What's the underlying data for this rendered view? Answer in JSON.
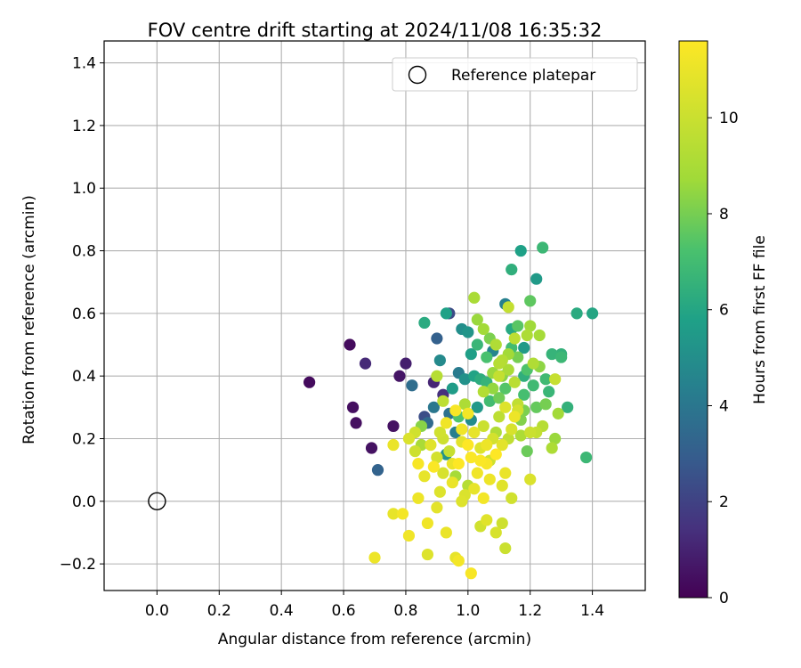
{
  "chart_data": {
    "type": "scatter",
    "title": "FOV centre drift starting at 2024/11/08 16:35:32",
    "xlabel": "Angular distance from reference (arcmin)",
    "ylabel": "Rotation from reference (arcmin)",
    "xlim": [
      -0.17,
      1.57
    ],
    "ylim": [
      -0.285,
      1.47
    ],
    "x_ticks": [
      "0.0",
      "0.2",
      "0.4",
      "0.6",
      "0.8",
      "1.0",
      "1.2",
      "1.4"
    ],
    "y_ticks": [
      "−0.2",
      "0.0",
      "0.2",
      "0.4",
      "0.6",
      "0.8",
      "1.0",
      "1.2",
      "1.4"
    ],
    "grid": true,
    "legend": {
      "placement": "top-right",
      "label": "Reference platepar"
    },
    "reference_point": {
      "x": 0.0,
      "y": 0.0
    },
    "colorbar": {
      "label": "Hours from first FF file",
      "range": [
        0,
        11.6
      ],
      "ticks": [
        "0",
        "2",
        "4",
        "6",
        "8",
        "10"
      ],
      "colormap": "viridis"
    },
    "points": [
      {
        "x": 0.49,
        "y": 0.38,
        "h": 0.3
      },
      {
        "x": 0.62,
        "y": 0.5,
        "h": 0.3
      },
      {
        "x": 0.63,
        "y": 0.3,
        "h": 0.4
      },
      {
        "x": 0.64,
        "y": 0.25,
        "h": 0.4
      },
      {
        "x": 0.67,
        "y": 0.44,
        "h": 1.2
      },
      {
        "x": 0.69,
        "y": 0.17,
        "h": 0.5
      },
      {
        "x": 0.71,
        "y": 0.1,
        "h": 3.2
      },
      {
        "x": 0.76,
        "y": 0.24,
        "h": 0.5
      },
      {
        "x": 0.78,
        "y": 0.4,
        "h": 0.6
      },
      {
        "x": 0.8,
        "y": 0.44,
        "h": 0.9
      },
      {
        "x": 0.82,
        "y": 0.37,
        "h": 3.6
      },
      {
        "x": 0.86,
        "y": 0.27,
        "h": 2.4
      },
      {
        "x": 0.89,
        "y": 0.38,
        "h": 1.1
      },
      {
        "x": 0.9,
        "y": 0.52,
        "h": 3.1
      },
      {
        "x": 0.92,
        "y": 0.34,
        "h": 1.4
      },
      {
        "x": 0.94,
        "y": 0.6,
        "h": 2.3
      },
      {
        "x": 0.93,
        "y": 0.6,
        "h": 5.8
      },
      {
        "x": 0.86,
        "y": 0.57,
        "h": 6.2
      },
      {
        "x": 0.91,
        "y": 0.45,
        "h": 4.8
      },
      {
        "x": 0.97,
        "y": 0.41,
        "h": 4.2
      },
      {
        "x": 0.99,
        "y": 0.39,
        "h": 5.1
      },
      {
        "x": 0.95,
        "y": 0.36,
        "h": 5.6
      },
      {
        "x": 0.98,
        "y": 0.55,
        "h": 5.0
      },
      {
        "x": 1.0,
        "y": 0.54,
        "h": 5.3
      },
      {
        "x": 1.01,
        "y": 0.47,
        "h": 5.7
      },
      {
        "x": 1.02,
        "y": 0.4,
        "h": 5.9
      },
      {
        "x": 1.03,
        "y": 0.58,
        "h": 8.6
      },
      {
        "x": 1.02,
        "y": 0.65,
        "h": 9.0
      },
      {
        "x": 1.05,
        "y": 0.55,
        "h": 8.8
      },
      {
        "x": 1.06,
        "y": 0.38,
        "h": 6.6
      },
      {
        "x": 1.07,
        "y": 0.32,
        "h": 7.0
      },
      {
        "x": 1.08,
        "y": 0.48,
        "h": 4.6
      },
      {
        "x": 1.09,
        "y": 0.5,
        "h": 9.2
      },
      {
        "x": 1.1,
        "y": 0.44,
        "h": 9.4
      },
      {
        "x": 1.11,
        "y": 0.4,
        "h": 8.3
      },
      {
        "x": 1.12,
        "y": 0.63,
        "h": 4.4
      },
      {
        "x": 1.13,
        "y": 0.62,
        "h": 9.8
      },
      {
        "x": 1.14,
        "y": 0.74,
        "h": 6.4
      },
      {
        "x": 1.14,
        "y": 0.55,
        "h": 6.1
      },
      {
        "x": 1.15,
        "y": 0.52,
        "h": 9.6
      },
      {
        "x": 1.16,
        "y": 0.46,
        "h": 8.0
      },
      {
        "x": 1.17,
        "y": 0.8,
        "h": 5.8
      },
      {
        "x": 1.18,
        "y": 0.49,
        "h": 5.5
      },
      {
        "x": 1.19,
        "y": 0.42,
        "h": 7.3
      },
      {
        "x": 1.2,
        "y": 0.64,
        "h": 7.6
      },
      {
        "x": 1.2,
        "y": 0.56,
        "h": 8.7
      },
      {
        "x": 1.22,
        "y": 0.71,
        "h": 5.5
      },
      {
        "x": 1.23,
        "y": 0.53,
        "h": 8.9
      },
      {
        "x": 1.24,
        "y": 0.81,
        "h": 6.8
      },
      {
        "x": 1.25,
        "y": 0.39,
        "h": 6.9
      },
      {
        "x": 1.26,
        "y": 0.35,
        "h": 6.7
      },
      {
        "x": 1.27,
        "y": 0.47,
        "h": 6.6
      },
      {
        "x": 1.28,
        "y": 0.39,
        "h": 9.9
      },
      {
        "x": 1.3,
        "y": 0.47,
        "h": 6.5
      },
      {
        "x": 1.3,
        "y": 0.46,
        "h": 6.8
      },
      {
        "x": 1.29,
        "y": 0.28,
        "h": 8.8
      },
      {
        "x": 1.32,
        "y": 0.3,
        "h": 6.5
      },
      {
        "x": 1.35,
        "y": 0.6,
        "h": 6.2
      },
      {
        "x": 1.4,
        "y": 0.6,
        "h": 6.0
      },
      {
        "x": 1.38,
        "y": 0.14,
        "h": 6.8
      },
      {
        "x": 1.28,
        "y": 0.2,
        "h": 8.6
      },
      {
        "x": 1.27,
        "y": 0.17,
        "h": 9.1
      },
      {
        "x": 1.24,
        "y": 0.24,
        "h": 9.4
      },
      {
        "x": 1.22,
        "y": 0.22,
        "h": 9.8
      },
      {
        "x": 1.2,
        "y": 0.07,
        "h": 10.5
      },
      {
        "x": 1.19,
        "y": 0.16,
        "h": 7.8
      },
      {
        "x": 1.16,
        "y": 0.29,
        "h": 10.3
      },
      {
        "x": 1.15,
        "y": 0.27,
        "h": 11.1
      },
      {
        "x": 1.13,
        "y": 0.2,
        "h": 9.7
      },
      {
        "x": 1.14,
        "y": 0.01,
        "h": 10.2
      },
      {
        "x": 1.12,
        "y": 0.09,
        "h": 11.0
      },
      {
        "x": 1.11,
        "y": -0.07,
        "h": 10.1
      },
      {
        "x": 1.12,
        "y": -0.15,
        "h": 10.0
      },
      {
        "x": 1.09,
        "y": -0.1,
        "h": 10.4
      },
      {
        "x": 1.06,
        "y": -0.06,
        "h": 10.7
      },
      {
        "x": 1.04,
        "y": -0.08,
        "h": 10.2
      },
      {
        "x": 1.01,
        "y": -0.23,
        "h": 11.4
      },
      {
        "x": 0.97,
        "y": -0.19,
        "h": 11.3
      },
      {
        "x": 0.96,
        "y": -0.18,
        "h": 10.9
      },
      {
        "x": 0.93,
        "y": -0.1,
        "h": 11.0
      },
      {
        "x": 0.9,
        "y": -0.02,
        "h": 10.8
      },
      {
        "x": 0.87,
        "y": -0.07,
        "h": 11.2
      },
      {
        "x": 0.87,
        "y": -0.17,
        "h": 10.6
      },
      {
        "x": 0.81,
        "y": -0.11,
        "h": 11.2
      },
      {
        "x": 0.76,
        "y": -0.04,
        "h": 10.9
      },
      {
        "x": 0.79,
        "y": -0.04,
        "h": 11.3
      },
      {
        "x": 0.7,
        "y": -0.18,
        "h": 11.1
      },
      {
        "x": 0.76,
        "y": 0.18,
        "h": 11.0
      },
      {
        "x": 0.81,
        "y": 0.2,
        "h": 10.5
      },
      {
        "x": 0.83,
        "y": 0.22,
        "h": 10.2
      },
      {
        "x": 0.84,
        "y": 0.12,
        "h": 11.4
      },
      {
        "x": 0.84,
        "y": 0.01,
        "h": 11.1
      },
      {
        "x": 0.86,
        "y": 0.08,
        "h": 10.9
      },
      {
        "x": 0.88,
        "y": 0.18,
        "h": 10.7
      },
      {
        "x": 0.89,
        "y": 0.11,
        "h": 11.5
      },
      {
        "x": 0.9,
        "y": 0.14,
        "h": 10.3
      },
      {
        "x": 0.91,
        "y": 0.03,
        "h": 10.6
      },
      {
        "x": 0.92,
        "y": 0.2,
        "h": 10.1
      },
      {
        "x": 0.93,
        "y": 0.25,
        "h": 11.2
      },
      {
        "x": 0.94,
        "y": 0.16,
        "h": 9.9
      },
      {
        "x": 0.95,
        "y": 0.06,
        "h": 11.0
      },
      {
        "x": 0.96,
        "y": 0.29,
        "h": 11.4
      },
      {
        "x": 0.97,
        "y": 0.12,
        "h": 11.6
      },
      {
        "x": 0.98,
        "y": 0.19,
        "h": 10.8
      },
      {
        "x": 0.99,
        "y": 0.02,
        "h": 10.5
      },
      {
        "x": 1.0,
        "y": 0.28,
        "h": 11.3
      },
      {
        "x": 1.01,
        "y": 0.14,
        "h": 11.5
      },
      {
        "x": 1.02,
        "y": 0.22,
        "h": 10.9
      },
      {
        "x": 1.03,
        "y": 0.09,
        "h": 11.2
      },
      {
        "x": 1.04,
        "y": 0.17,
        "h": 10.6
      },
      {
        "x": 1.05,
        "y": 0.24,
        "h": 10.0
      },
      {
        "x": 1.06,
        "y": 0.12,
        "h": 11.4
      },
      {
        "x": 1.07,
        "y": 0.07,
        "h": 11.1
      },
      {
        "x": 1.08,
        "y": 0.2,
        "h": 10.3
      },
      {
        "x": 1.09,
        "y": 0.15,
        "h": 11.6
      },
      {
        "x": 1.1,
        "y": 0.27,
        "h": 9.6
      },
      {
        "x": 1.11,
        "y": 0.05,
        "h": 10.7
      },
      {
        "x": 1.05,
        "y": 0.35,
        "h": 9.3
      },
      {
        "x": 1.08,
        "y": 0.36,
        "h": 8.5
      },
      {
        "x": 1.1,
        "y": 0.33,
        "h": 7.9
      },
      {
        "x": 1.12,
        "y": 0.36,
        "h": 7.4
      },
      {
        "x": 1.13,
        "y": 0.42,
        "h": 9.0
      },
      {
        "x": 1.15,
        "y": 0.38,
        "h": 9.5
      },
      {
        "x": 1.16,
        "y": 0.31,
        "h": 9.7
      },
      {
        "x": 1.17,
        "y": 0.26,
        "h": 8.2
      },
      {
        "x": 1.18,
        "y": 0.34,
        "h": 7.1
      },
      {
        "x": 1.21,
        "y": 0.37,
        "h": 6.9
      },
      {
        "x": 1.22,
        "y": 0.3,
        "h": 7.7
      },
      {
        "x": 1.23,
        "y": 0.43,
        "h": 8.4
      },
      {
        "x": 1.21,
        "y": 0.44,
        "h": 9.2
      },
      {
        "x": 1.19,
        "y": 0.53,
        "h": 9.1
      },
      {
        "x": 1.16,
        "y": 0.56,
        "h": 7.5
      },
      {
        "x": 1.13,
        "y": 0.47,
        "h": 8.8
      },
      {
        "x": 1.11,
        "y": 0.45,
        "h": 9.3
      },
      {
        "x": 1.08,
        "y": 0.41,
        "h": 8.6
      },
      {
        "x": 1.06,
        "y": 0.46,
        "h": 7.2
      },
      {
        "x": 1.04,
        "y": 0.39,
        "h": 6.3
      },
      {
        "x": 1.03,
        "y": 0.3,
        "h": 5.4
      },
      {
        "x": 1.01,
        "y": 0.26,
        "h": 4.9
      },
      {
        "x": 0.99,
        "y": 0.31,
        "h": 9.1
      },
      {
        "x": 0.97,
        "y": 0.27,
        "h": 7.3
      },
      {
        "x": 0.96,
        "y": 0.22,
        "h": 4.3
      },
      {
        "x": 0.94,
        "y": 0.28,
        "h": 3.8
      },
      {
        "x": 0.92,
        "y": 0.32,
        "h": 9.6
      },
      {
        "x": 0.9,
        "y": 0.4,
        "h": 9.4
      },
      {
        "x": 0.89,
        "y": 0.3,
        "h": 4.0
      },
      {
        "x": 0.87,
        "y": 0.25,
        "h": 3.5
      },
      {
        "x": 0.85,
        "y": 0.18,
        "h": 9.0
      },
      {
        "x": 0.91,
        "y": 0.22,
        "h": 10.2
      },
      {
        "x": 0.93,
        "y": 0.15,
        "h": 5.2
      },
      {
        "x": 0.96,
        "y": 0.08,
        "h": 8.9
      },
      {
        "x": 0.98,
        "y": 0.0,
        "h": 10.6
      },
      {
        "x": 1.0,
        "y": 0.05,
        "h": 9.4
      },
      {
        "x": 1.02,
        "y": 0.04,
        "h": 10.9
      },
      {
        "x": 1.05,
        "y": 0.01,
        "h": 11.3
      },
      {
        "x": 1.07,
        "y": 0.13,
        "h": 10.1
      },
      {
        "x": 1.09,
        "y": 0.22,
        "h": 9.2
      },
      {
        "x": 1.11,
        "y": 0.18,
        "h": 10.8
      },
      {
        "x": 1.14,
        "y": 0.23,
        "h": 10.4
      },
      {
        "x": 1.17,
        "y": 0.21,
        "h": 9.1
      },
      {
        "x": 1.18,
        "y": 0.29,
        "h": 8.1
      },
      {
        "x": 1.2,
        "y": 0.22,
        "h": 10.0
      },
      {
        "x": 0.83,
        "y": 0.16,
        "h": 10.1
      },
      {
        "x": 0.85,
        "y": 0.24,
        "h": 8.3
      },
      {
        "x": 0.95,
        "y": 0.12,
        "h": 11.0
      },
      {
        "x": 1.04,
        "y": 0.13,
        "h": 11.5
      },
      {
        "x": 1.0,
        "y": 0.18,
        "h": 11.6
      },
      {
        "x": 0.98,
        "y": 0.23,
        "h": 11.2
      },
      {
        "x": 0.92,
        "y": 0.09,
        "h": 10.4
      },
      {
        "x": 1.06,
        "y": 0.18,
        "h": 11.1
      },
      {
        "x": 1.12,
        "y": 0.3,
        "h": 10.6
      },
      {
        "x": 1.1,
        "y": 0.4,
        "h": 9.8
      },
      {
        "x": 1.14,
        "y": 0.49,
        "h": 7.0
      },
      {
        "x": 1.18,
        "y": 0.4,
        "h": 6.4
      },
      {
        "x": 1.25,
        "y": 0.31,
        "h": 8.0
      },
      {
        "x": 1.03,
        "y": 0.5,
        "h": 6.7
      },
      {
        "x": 1.07,
        "y": 0.52,
        "h": 8.1
      }
    ]
  }
}
